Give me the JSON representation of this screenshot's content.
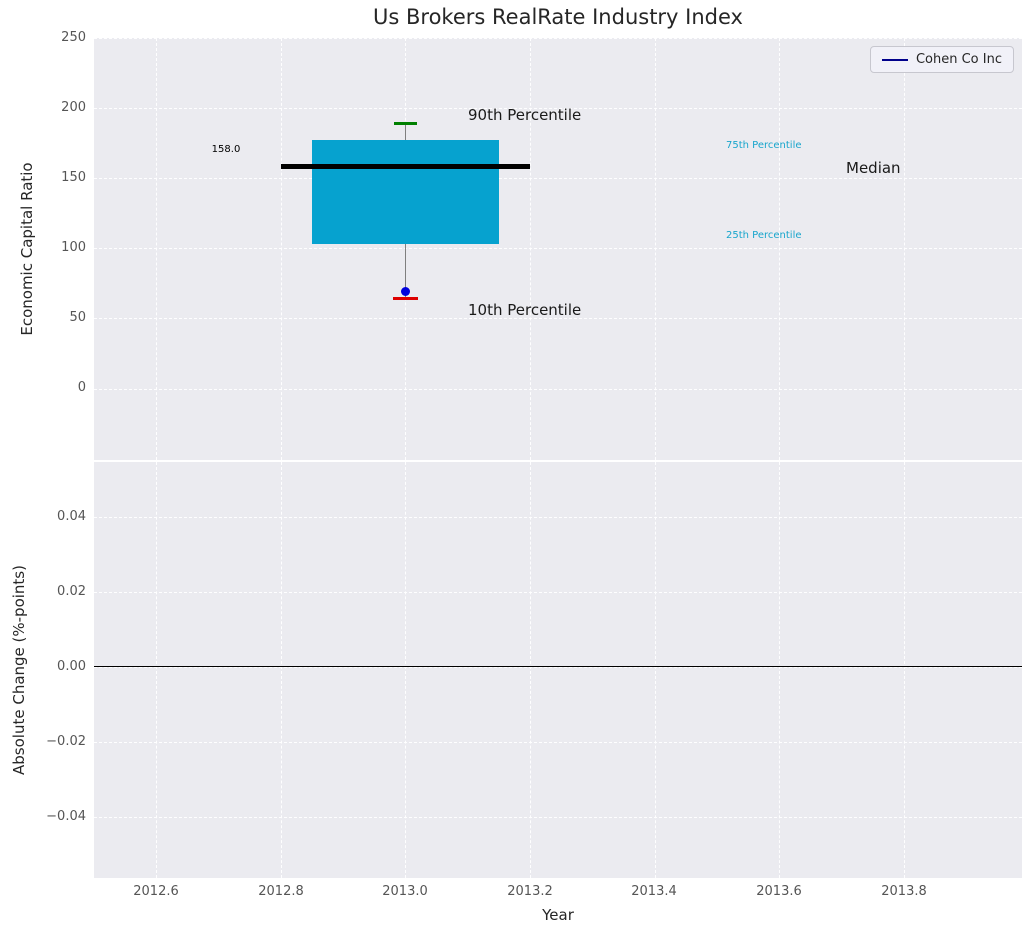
{
  "chart_data": {
    "type": "boxplot",
    "title": "Us Brokers RealRate Industry Index",
    "xlabel": "Year",
    "xlim": [
      2012.5,
      2013.99
    ],
    "xticks": [
      "2012.6",
      "2012.8",
      "2013.0",
      "2013.2",
      "2013.4",
      "2013.6",
      "2013.8"
    ],
    "top": {
      "ylabel": "Economic Capital Ratio",
      "ylim": [
        -51,
        250
      ],
      "yticks": [
        "250",
        "200",
        "150",
        "100",
        "50",
        "0"
      ],
      "box": {
        "x": 2013.0,
        "p90": 189,
        "q3": 177,
        "median": 158.0,
        "q1": 103,
        "p10": 64,
        "company_value": 69
      },
      "labels": {
        "median_value": "158.0",
        "p90": "90th Percentile",
        "p10": "10th Percentile",
        "p75": "75th Percentile",
        "p25": "25th Percentile",
        "median": "Median"
      },
      "legend_label": "Cohen Co Inc"
    },
    "bottom": {
      "ylabel": "Absolute Change (%-points)",
      "ylim": [
        -0.056,
        0.055
      ],
      "yticks": [
        "0.04",
        "0.02",
        "0.00",
        "−0.02",
        "−0.04"
      ],
      "zero_line": 0
    },
    "colors": {
      "box_fill": "#06a2cf",
      "median_line": "#000000",
      "p90_cap": "#008000",
      "p10_cap": "#dd0000",
      "company_dot": "#0000dd",
      "legend_line": "#00008b",
      "percentile_text": "#18a5cc",
      "axes_background": "#ebebf0"
    }
  }
}
